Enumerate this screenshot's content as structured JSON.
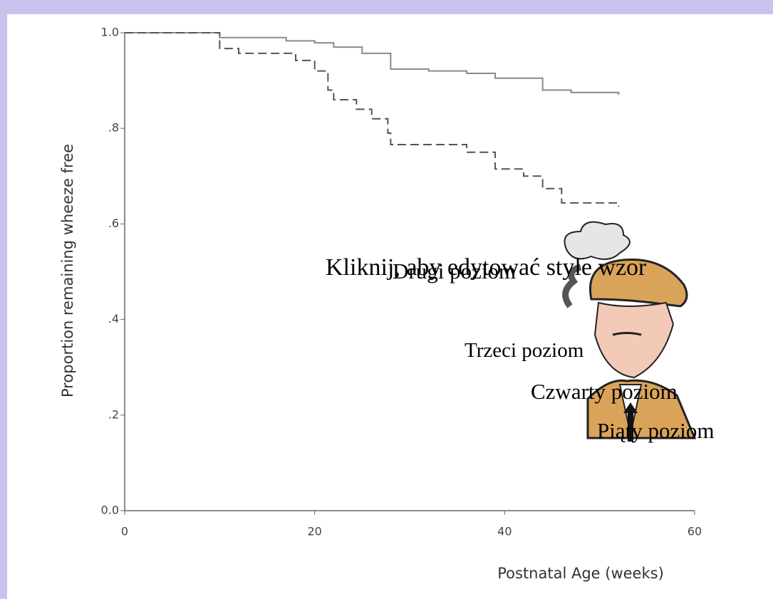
{
  "chart_data": {
    "type": "step",
    "xlabel": "Postnatal Age (weeks)",
    "ylabel": "Proportion remaining wheeze free",
    "xlim": [
      0,
      60
    ],
    "xticks": [
      0,
      20,
      40,
      60
    ],
    "ylim": [
      0,
      1
    ],
    "yticks": [
      {
        "value": 0,
        "label": "0.0"
      },
      {
        "value": 0.2,
        "label": ".2"
      },
      {
        "value": 0.4,
        "label": ".4"
      },
      {
        "value": 0.6,
        "label": ".6"
      },
      {
        "value": 0.8,
        "label": ".8"
      },
      {
        "value": 1,
        "label": "1.0"
      }
    ],
    "series": [
      {
        "color": "#8a8a8a",
        "dash": false,
        "x": [
          0,
          10,
          17,
          20,
          22,
          25,
          28,
          32,
          36,
          39,
          44,
          47,
          52
        ],
        "values": [
          1,
          0.99,
          0.983,
          0.979,
          0.97,
          0.957,
          0.924,
          0.92,
          0.915,
          0.905,
          0.88,
          0.875,
          0.87
        ]
      },
      {
        "color": "#555555",
        "dash": true,
        "x": [
          0,
          10,
          12,
          18,
          20,
          21.4,
          22,
          24.4,
          26,
          27.7,
          28,
          36,
          39,
          42,
          44,
          46,
          52
        ],
        "values": [
          1,
          0.967,
          0.957,
          0.942,
          0.92,
          0.88,
          0.86,
          0.84,
          0.82,
          0.79,
          0.766,
          0.75,
          0.715,
          0.7,
          0.674,
          0.644,
          0.636
        ]
      }
    ]
  },
  "placeholder": {
    "levels": [
      "Kliknij, aby edytować style wzor",
      "Drugi poziom",
      "Trzeci poziom",
      "Czwarty poziom",
      "Piąty poziom"
    ]
  }
}
